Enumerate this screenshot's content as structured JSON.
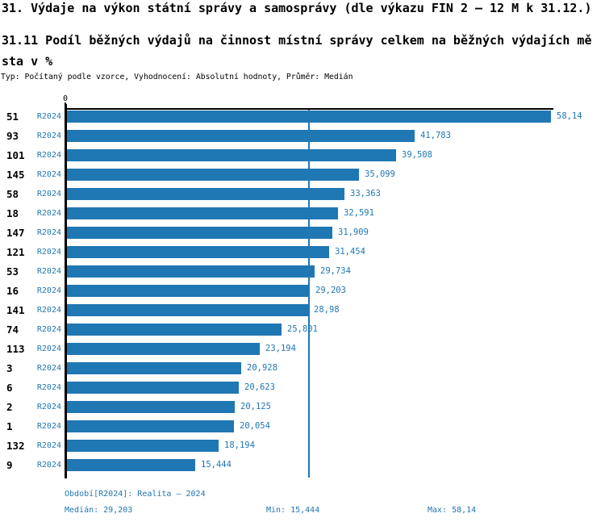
{
  "header": {
    "title_line1": "31. Výdaje na výkon státní správy a samosprávy (dle výkazu FIN 2 – 12 M k 31.12.)",
    "subtitle_line1": "31.11 Podíl běžných výdajů na činnost místní správy celkem na běžných výdajích mě",
    "subtitle_line2": "sta v %",
    "meta_line": "Typ: Počítaný podle vzorce, Vyhodnocení: Absolutní hodnoty, Průměr: Medián"
  },
  "chart_data": {
    "type": "bar",
    "orientation": "horizontal",
    "title": "31. Výdaje na výkon státní správy a samosprávy (dle výkazu FIN 2 – 12 M k 31.12.)",
    "subtitle": "31.11 Podíl běžných výdajů na činnost místní správy celkem na běžných výdajích města v %",
    "axis_zero_label": "0",
    "series_label": "R2024",
    "categories": [
      "51",
      "93",
      "101",
      "145",
      "58",
      "18",
      "147",
      "121",
      "53",
      "16",
      "141",
      "74",
      "113",
      "3",
      "6",
      "2",
      "1",
      "132",
      "9"
    ],
    "values": [
      58.14,
      41.783,
      39.508,
      35.099,
      33.363,
      32.591,
      31.909,
      31.454,
      29.734,
      29.203,
      28.98,
      25.801,
      23.194,
      20.928,
      20.623,
      20.125,
      20.054,
      18.194,
      15.444
    ],
    "value_labels": [
      "58,14",
      "41,783",
      "39,508",
      "35,099",
      "33,363",
      "32,591",
      "31,909",
      "31,454",
      "29,734",
      "29,203",
      "28,98",
      "25,801",
      "23,194",
      "20,928",
      "20,623",
      "20,125",
      "20,054",
      "18,194",
      "15,444"
    ],
    "xlim": [
      0,
      58.14
    ],
    "median": 29.203,
    "min": 15.444,
    "max": 58.14,
    "median_line": true,
    "grid": false,
    "legend_position": "none",
    "bar_color": "#1f77b4",
    "value_text_color": "#1f77b4",
    "axis_color": "#000000"
  },
  "footer": {
    "period_line": "Období[R2024]: Realita – 2024",
    "median_label": "Medián: 29,203",
    "min_label": "Min: 15,444",
    "max_label": "Max: 58,14"
  }
}
